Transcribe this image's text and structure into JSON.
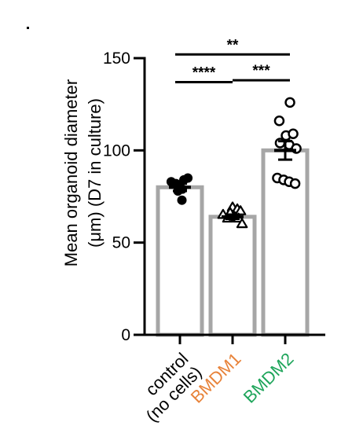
{
  "chart_data": {
    "type": "bar",
    "title": "",
    "ylabel_lines": [
      "Mean organoid diameter",
      "(μm) (D7 in culture)"
    ],
    "ylim": [
      0,
      150
    ],
    "yticks": [
      0,
      50,
      100,
      150
    ],
    "ytick_labels": [
      "0",
      "50",
      "100",
      "150"
    ],
    "grid": false,
    "legend": "none",
    "categories": [
      {
        "lines": [
          "control",
          "(no cells)"
        ],
        "color": "#000000"
      },
      {
        "lines": [
          "BMDM1"
        ],
        "color": "#E8833A"
      },
      {
        "lines": [
          "BMDM2"
        ],
        "color": "#1FA55B"
      }
    ],
    "series": [
      {
        "category": 0,
        "mean": 80,
        "sem": 2,
        "marker": "circle-filled",
        "points": [
          [
            -0.22,
            83
          ],
          [
            -0.1,
            82
          ],
          [
            0.0,
            80
          ],
          [
            0.1,
            84
          ],
          [
            0.2,
            85
          ],
          [
            -0.05,
            78
          ],
          [
            0.06,
            79
          ],
          [
            0.05,
            73
          ]
        ]
      },
      {
        "category": 1,
        "mean": 64,
        "sem": 1.2,
        "marker": "triangle-open",
        "points": [
          [
            -0.24,
            65
          ],
          [
            -0.12,
            63
          ],
          [
            0.0,
            69
          ],
          [
            -0.06,
            66
          ],
          [
            0.12,
            68
          ],
          [
            0.2,
            67
          ],
          [
            0.04,
            64
          ],
          [
            0.15,
            63
          ],
          [
            0.24,
            60
          ]
        ]
      },
      {
        "category": 2,
        "mean": 100,
        "sem": 5,
        "marker": "circle-open",
        "points": [
          [
            -0.15,
            116
          ],
          [
            0.12,
            126
          ],
          [
            0.02,
            108
          ],
          [
            0.2,
            109
          ],
          [
            -0.13,
            104
          ],
          [
            0.1,
            103
          ],
          [
            0.28,
            101
          ],
          [
            -0.2,
            85
          ],
          [
            -0.04,
            84
          ],
          [
            0.1,
            83
          ],
          [
            0.25,
            82
          ]
        ]
      }
    ],
    "bar_color": "#A6A6A6",
    "significance": [
      {
        "from": 0,
        "to": 2,
        "y": 152,
        "label": "**"
      },
      {
        "from": 0,
        "to": 1,
        "y": 137,
        "label": "****"
      },
      {
        "from": 1,
        "to": 2,
        "y": 138,
        "label": "***"
      }
    ]
  }
}
